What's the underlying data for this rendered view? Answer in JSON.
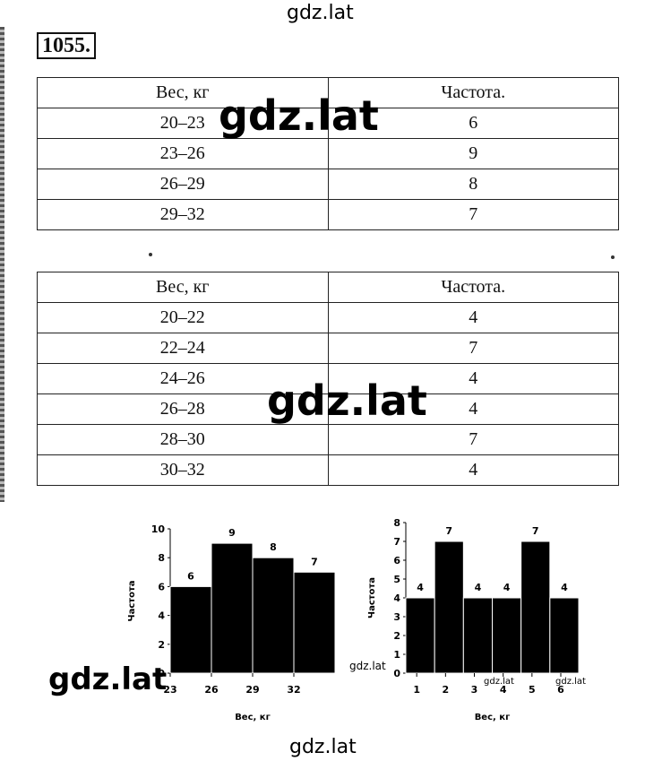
{
  "watermark_text": "gdz.lat",
  "problem_number": "1055.",
  "table1": {
    "headers": [
      "Вес, кг",
      "Частота."
    ],
    "rows": [
      [
        "20–23",
        "6"
      ],
      [
        "23–26",
        "9"
      ],
      [
        "26–29",
        "8"
      ],
      [
        "29–32",
        "7"
      ]
    ]
  },
  "table2": {
    "headers": [
      "Вес, кг",
      "Частота."
    ],
    "rows": [
      [
        "20–22",
        "4"
      ],
      [
        "22–24",
        "7"
      ],
      [
        "24–26",
        "4"
      ],
      [
        "26–28",
        "4"
      ],
      [
        "28–30",
        "7"
      ],
      [
        "30–32",
        "4"
      ]
    ]
  },
  "chart_data": [
    {
      "type": "bar",
      "categories": [
        "20–23",
        "23–26",
        "26–29",
        "29–32"
      ],
      "values": [
        6,
        9,
        8,
        7
      ],
      "xticks": [
        "23",
        "26",
        "29",
        "32"
      ],
      "yticks": [
        "0",
        "2",
        "4",
        "6",
        "8",
        "10"
      ],
      "ylim": [
        0,
        10
      ],
      "xlabel": "Вес, кг",
      "ylabel": "Частота"
    },
    {
      "type": "bar",
      "categories": [
        "20–22",
        "22–24",
        "24–26",
        "26–28",
        "28–30",
        "30–32"
      ],
      "values": [
        4,
        7,
        4,
        4,
        7,
        4
      ],
      "xticks": [
        "1",
        "2",
        "3",
        "4",
        "5",
        "6"
      ],
      "yticks": [
        "0",
        "1",
        "2",
        "3",
        "4",
        "5",
        "6",
        "7",
        "8"
      ],
      "ylim": [
        0,
        8
      ],
      "xlabel": "Вес, кг",
      "ylabel": "Частота"
    }
  ]
}
